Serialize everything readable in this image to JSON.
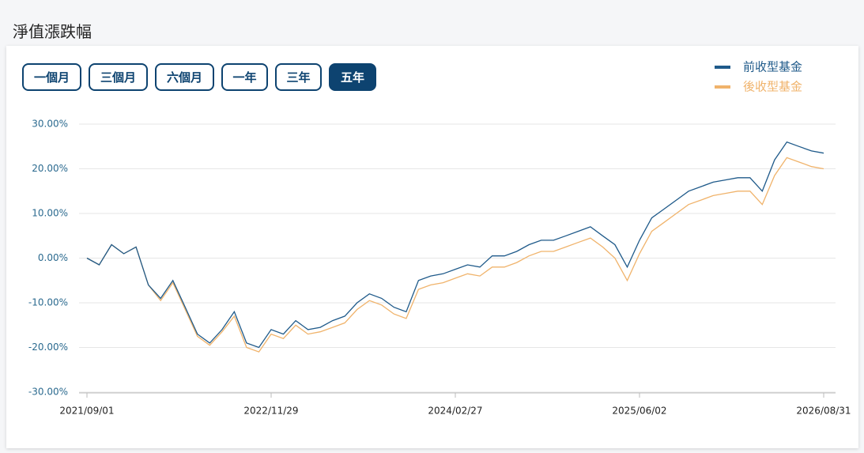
{
  "header": {
    "title": "淨值漲跌幅"
  },
  "buttons": [
    "一個月",
    "三個月",
    "六個月",
    "一年",
    "三年",
    "五年"
  ],
  "active_button": 5,
  "chart_data": {
    "type": "line",
    "legend": "top-right",
    "grid": true,
    "categories": [
      "2021/09/01",
      null,
      null,
      null,
      null,
      null,
      null,
      null,
      null,
      null,
      null,
      null,
      null,
      null,
      null,
      "2022/11/29",
      null,
      null,
      null,
      null,
      null,
      null,
      null,
      null,
      null,
      null,
      null,
      null,
      null,
      null,
      "2024/02/27",
      null,
      null,
      null,
      null,
      null,
      null,
      null,
      null,
      null,
      null,
      null,
      null,
      null,
      null,
      "2025/06/02",
      null,
      null,
      null,
      null,
      null,
      null,
      null,
      null,
      null,
      null,
      null,
      null,
      null,
      null,
      "2026/08/31"
    ],
    "ylim": [
      -30,
      30
    ],
    "yticks": [
      {
        "value": -30,
        "label": "-30.00%"
      },
      {
        "value": -20,
        "label": "-20.00%"
      },
      {
        "value": -10,
        "label": "-10.00%"
      },
      {
        "value": 0,
        "label": "0.00%"
      },
      {
        "value": 10,
        "label": "10.00%"
      },
      {
        "value": 20,
        "label": "20.00%"
      },
      {
        "value": 30,
        "label": "30.00%"
      }
    ],
    "series": [
      {
        "name": "前收型基金",
        "color": "#1f5a8a",
        "values": [
          0,
          -1.5,
          3,
          1,
          2.5,
          -6,
          -9,
          -5,
          -11,
          -17,
          -19,
          -16,
          -12,
          -19,
          -20,
          -16,
          -17,
          -14,
          -16,
          -15.5,
          -14,
          -13,
          -10,
          -8,
          -9,
          -11,
          -12,
          -5,
          -4,
          -3.5,
          -2.5,
          -1.5,
          -2,
          0.5,
          0.5,
          1.5,
          3,
          4,
          4,
          5,
          6,
          7,
          5,
          3,
          -2,
          4,
          9,
          11,
          13,
          15,
          16,
          17,
          17.5,
          18,
          18,
          15,
          22,
          26,
          25,
          24,
          23.5
        ]
      },
      {
        "name": "後收型基金",
        "color": "#f0b36b",
        "values": [
          0,
          -1.5,
          3,
          1,
          2.5,
          -6,
          -9.5,
          -5.5,
          -11.5,
          -17.5,
          -19.5,
          -16.5,
          -13,
          -20,
          -21,
          -17,
          -18,
          -15,
          -17,
          -16.5,
          -15.5,
          -14.5,
          -11.5,
          -9.5,
          -10.5,
          -12.5,
          -13.5,
          -7,
          -6,
          -5.5,
          -4.5,
          -3.5,
          -4,
          -2,
          -2,
          -1,
          0.5,
          1.5,
          1.5,
          2.5,
          3.5,
          4.5,
          2.5,
          0,
          -5,
          1,
          6,
          8,
          10,
          12,
          13,
          14,
          14.5,
          15,
          15,
          12,
          18.5,
          22.5,
          21.5,
          20.5,
          20
        ]
      }
    ]
  }
}
